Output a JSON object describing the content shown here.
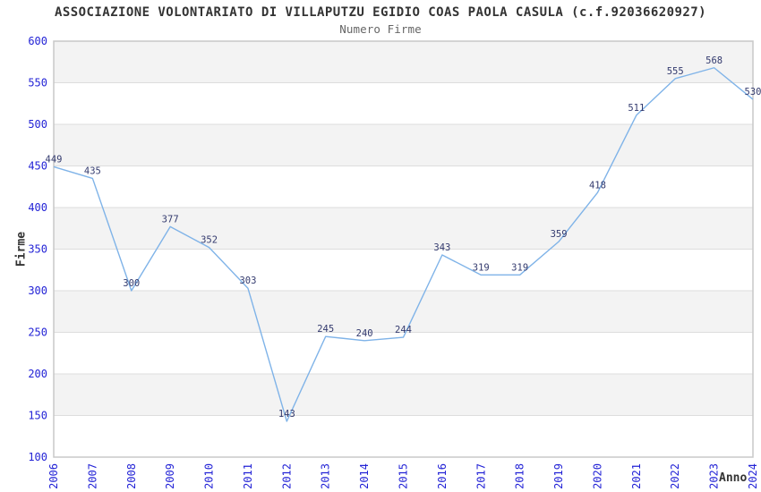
{
  "chart_data": {
    "type": "line",
    "title": "ASSOCIAZIONE VOLONTARIATO DI VILLAPUTZU EGIDIO COAS PAOLA CASULA (c.f.92036620927)",
    "subtitle": "Numero Firme",
    "xlabel": "Anno",
    "ylabel": "Firme",
    "x": [
      2006,
      2007,
      2008,
      2009,
      2010,
      2011,
      2012,
      2013,
      2014,
      2015,
      2016,
      2017,
      2018,
      2019,
      2020,
      2021,
      2022,
      2023,
      2024
    ],
    "series": [
      {
        "name": "Numero Firme",
        "values": [
          449,
          435,
          300,
          377,
          352,
          303,
          143,
          245,
          240,
          244,
          343,
          319,
          319,
          359,
          418,
          511,
          555,
          568,
          530
        ]
      }
    ],
    "ylim": [
      100,
      600
    ],
    "ytick_step": 50,
    "yticks": [
      100,
      150,
      200,
      250,
      300,
      350,
      400,
      450,
      500,
      550,
      600
    ],
    "grid": "horizontal-only",
    "banded_background": true,
    "show_point_labels": true,
    "legend_position": "none",
    "x_tick_rotation_degrees": -90,
    "colors": {
      "line": "#7fb3e8",
      "tick_label": "#2323d6",
      "point_label": "#333a6e",
      "band": "#f3f3f3",
      "gridline": "#dddddd",
      "plot_border": "#c8c8c8",
      "title": "#333333",
      "subtitle": "#666666",
      "axis_title": "#333333",
      "background": "#ffffff"
    }
  }
}
